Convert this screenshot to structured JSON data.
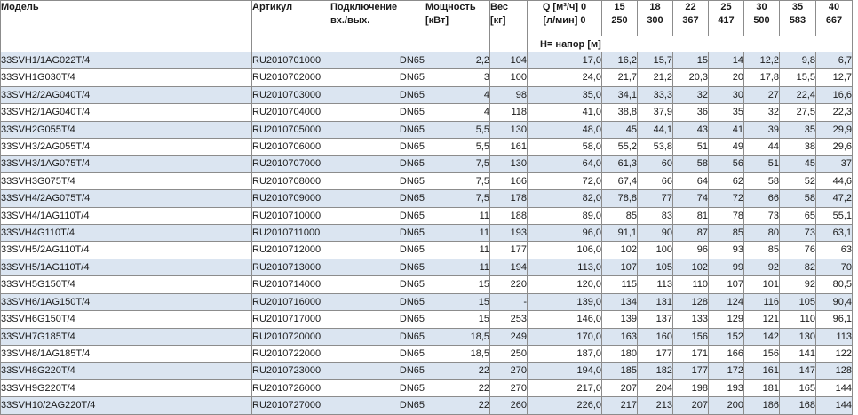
{
  "table": {
    "headers": {
      "model": "Модель",
      "empty": "",
      "article": "Артикул",
      "connection_line1": "Подключение",
      "connection_line2": "вх./вых.",
      "power_line1": "Мощность",
      "power_line2": "[кВт]",
      "weight_line1": "Вес",
      "weight_line2": "[кг]",
      "q_line1": "Q [м³/ч] 0",
      "q_line2": "[л/мин] 0",
      "head_row": "Н= напор [м]",
      "flow_cols": [
        {
          "m3h": "15",
          "lmin": "250"
        },
        {
          "m3h": "18",
          "lmin": "300"
        },
        {
          "m3h": "22",
          "lmin": "367"
        },
        {
          "m3h": "25",
          "lmin": "417"
        },
        {
          "m3h": "30",
          "lmin": "500"
        },
        {
          "m3h": "35",
          "lmin": "583"
        },
        {
          "m3h": "40",
          "lmin": "667"
        }
      ]
    },
    "rows": [
      {
        "model": "33SVH1/1AG022T/4",
        "article": "RU2010701000",
        "connection": "DN65",
        "power": "2,2",
        "weight": "104",
        "values": [
          "17,0",
          "16,2",
          "15,7",
          "15",
          "14",
          "12,2",
          "9,8",
          "6,7"
        ]
      },
      {
        "model": "33SVH1G030T/4",
        "article": "RU2010702000",
        "connection": "DN65",
        "power": "3",
        "weight": "100",
        "values": [
          "24,0",
          "21,7",
          "21,2",
          "20,3",
          "20",
          "17,8",
          "15,5",
          "12,7"
        ]
      },
      {
        "model": "33SVH2/2AG040T/4",
        "article": "RU2010703000",
        "connection": "DN65",
        "power": "4",
        "weight": "98",
        "values": [
          "35,0",
          "34,1",
          "33,3",
          "32",
          "30",
          "27",
          "22,4",
          "16,6"
        ]
      },
      {
        "model": "33SVH2/1AG040T/4",
        "article": "RU2010704000",
        "connection": "DN65",
        "power": "4",
        "weight": "118",
        "values": [
          "41,0",
          "38,8",
          "37,9",
          "36",
          "35",
          "32",
          "27,5",
          "22,3"
        ]
      },
      {
        "model": "33SVH2G055T/4",
        "article": "RU2010705000",
        "connection": "DN65",
        "power": "5,5",
        "weight": "130",
        "values": [
          "48,0",
          "45",
          "44,1",
          "43",
          "41",
          "39",
          "35",
          "29,9"
        ]
      },
      {
        "model": "33SVH3/2AG055T/4",
        "article": "RU2010706000",
        "connection": "DN65",
        "power": "5,5",
        "weight": "161",
        "values": [
          "58,0",
          "55,2",
          "53,8",
          "51",
          "49",
          "44",
          "38",
          "29,6"
        ]
      },
      {
        "model": "33SVH3/1AG075T/4",
        "article": "RU2010707000",
        "connection": "DN65",
        "power": "7,5",
        "weight": "130",
        "values": [
          "64,0",
          "61,3",
          "60",
          "58",
          "56",
          "51",
          "45",
          "37"
        ]
      },
      {
        "model": "33SVH3G075T/4",
        "article": "RU2010708000",
        "connection": "DN65",
        "power": "7,5",
        "weight": "166",
        "values": [
          "72,0",
          "67,4",
          "66",
          "64",
          "62",
          "58",
          "52",
          "44,6"
        ]
      },
      {
        "model": "33SVH4/2AG075T/4",
        "article": "RU2010709000",
        "connection": "DN65",
        "power": "7,5",
        "weight": "178",
        "values": [
          "82,0",
          "78,8",
          "77",
          "74",
          "72",
          "66",
          "58",
          "47,2"
        ]
      },
      {
        "model": "33SVH4/1AG110T/4",
        "article": "RU2010710000",
        "connection": "DN65",
        "power": "11",
        "weight": "188",
        "values": [
          "89,0",
          "85",
          "83",
          "81",
          "78",
          "73",
          "65",
          "55,1"
        ]
      },
      {
        "model": "33SVH4G110T/4",
        "article": "RU2010711000",
        "connection": "DN65",
        "power": "11",
        "weight": "193",
        "values": [
          "96,0",
          "91,1",
          "90",
          "87",
          "85",
          "80",
          "73",
          "63,1"
        ]
      },
      {
        "model": "33SVH5/2AG110T/4",
        "article": "RU2010712000",
        "connection": "DN65",
        "power": "11",
        "weight": "177",
        "values": [
          "106,0",
          "102",
          "100",
          "96",
          "93",
          "85",
          "76",
          "63"
        ]
      },
      {
        "model": "33SVH5/1AG110T/4",
        "article": "RU2010713000",
        "connection": "DN65",
        "power": "11",
        "weight": "194",
        "values": [
          "113,0",
          "107",
          "105",
          "102",
          "99",
          "92",
          "82",
          "70"
        ]
      },
      {
        "model": "33SVH5G150T/4",
        "article": "RU2010714000",
        "connection": "DN65",
        "power": "15",
        "weight": "220",
        "values": [
          "120,0",
          "115",
          "113",
          "110",
          "107",
          "101",
          "92",
          "80,5"
        ]
      },
      {
        "model": "33SVH6/1AG150T/4",
        "article": "RU2010716000",
        "connection": "DN65",
        "power": "15",
        "weight": "-",
        "values": [
          "139,0",
          "134",
          "131",
          "128",
          "124",
          "116",
          "105",
          "90,4"
        ]
      },
      {
        "model": "33SVH6G150T/4",
        "article": "RU2010717000",
        "connection": "DN65",
        "power": "15",
        "weight": "253",
        "values": [
          "146,0",
          "139",
          "137",
          "133",
          "129",
          "121",
          "110",
          "96,1"
        ]
      },
      {
        "model": "33SVH7G185T/4",
        "article": "RU2010720000",
        "connection": "DN65",
        "power": "18,5",
        "weight": "249",
        "values": [
          "170,0",
          "163",
          "160",
          "156",
          "152",
          "142",
          "130",
          "113"
        ]
      },
      {
        "model": "33SVH8/1AG185T/4",
        "article": "RU2010722000",
        "connection": "DN65",
        "power": "18,5",
        "weight": "250",
        "values": [
          "187,0",
          "180",
          "177",
          "171",
          "166",
          "156",
          "141",
          "122"
        ]
      },
      {
        "model": "33SVH8G220T/4",
        "article": "RU2010723000",
        "connection": "DN65",
        "power": "22",
        "weight": "270",
        "values": [
          "194,0",
          "185",
          "182",
          "177",
          "172",
          "161",
          "147",
          "128"
        ]
      },
      {
        "model": "33SVH9G220T/4",
        "article": "RU2010726000",
        "connection": "DN65",
        "power": "22",
        "weight": "270",
        "values": [
          "217,0",
          "207",
          "204",
          "198",
          "193",
          "181",
          "165",
          "144"
        ]
      },
      {
        "model": "33SVH10/2AG220T/4",
        "article": "RU2010727000",
        "connection": "DN65",
        "power": "22",
        "weight": "260",
        "values": [
          "226,0",
          "217",
          "213",
          "207",
          "200",
          "186",
          "168",
          "144"
        ]
      }
    ]
  },
  "colors": {
    "stripe": "#dbe5f1",
    "border": "#8c8c8c",
    "text": "#1a1a1a"
  }
}
